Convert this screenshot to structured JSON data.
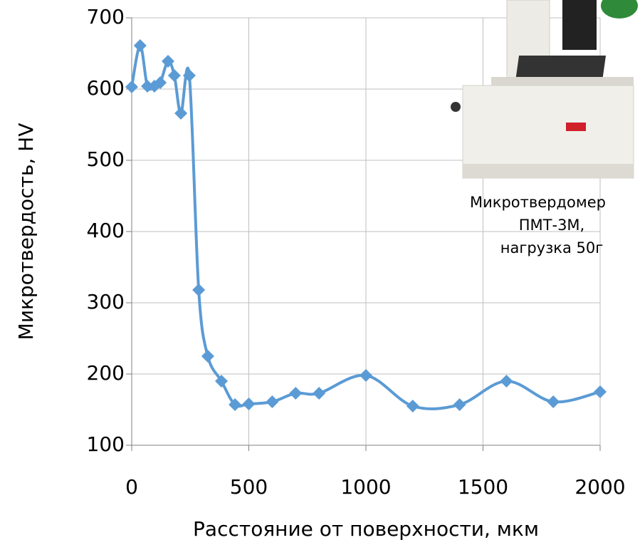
{
  "chart_data": {
    "type": "line",
    "x_label": "Расстояние от поверхности, мкм",
    "y_label": "Микротвердость, HV",
    "annotation": [
      "Микротвердомер",
      "ПМТ-3М,",
      "нагрузка 50г"
    ],
    "x": [
      0,
      36,
      67,
      97,
      122,
      155,
      182,
      210,
      246,
      286,
      325,
      383,
      441,
      500,
      600,
      700,
      800,
      1000,
      1200,
      1400,
      1600,
      1800,
      2000
    ],
    "series": [
      {
        "color": "#5b9bd5",
        "values": [
          603,
          661,
          604,
          604,
          609,
          639,
          619,
          566,
          619,
          318,
          225,
          190,
          157,
          158,
          161,
          173,
          173,
          198,
          155,
          157,
          190,
          161,
          175
        ]
      }
    ],
    "xlim": [
      0,
      2000
    ],
    "xticks": [
      0,
      500,
      1000,
      1500,
      2000
    ],
    "ylim": [
      100,
      700
    ],
    "yticks": [
      100,
      200,
      300,
      400,
      500,
      600,
      700
    ],
    "grid": true,
    "smooth": true
  }
}
